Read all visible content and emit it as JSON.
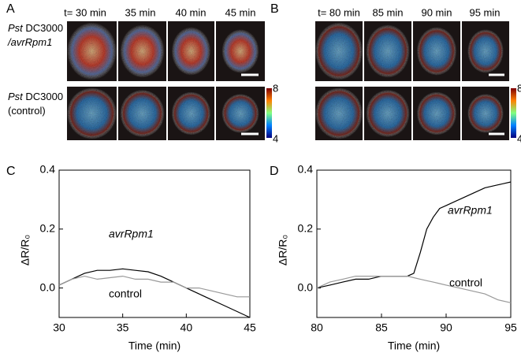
{
  "image_panels": [
    {
      "label": "A",
      "times": [
        "t= 30 min",
        "35 min",
        "40 min",
        "45 min"
      ],
      "rows": [
        [
          [
            {
              "text": "Pst",
              "italic": true
            },
            {
              "text": " DC3000"
            }
          ],
          [
            {
              "text": "/avrRpm1",
              "italic": true
            }
          ]
        ],
        [
          [
            {
              "text": "Pst",
              "italic": true
            },
            {
              "text": " DC3000"
            }
          ],
          [
            {
              "text": "(control)"
            }
          ]
        ]
      ],
      "colorbar": {
        "max": 8,
        "min": 4
      }
    },
    {
      "label": "B",
      "times": [
        "t= 80 min",
        "85 min",
        "90 min",
        "95 min"
      ],
      "rows": [],
      "colorbar": {
        "max": 8,
        "min": 4
      }
    }
  ],
  "chart_data": [
    {
      "type": "line",
      "label": "C",
      "xlabel": "Time (min)",
      "ylabel": "ΔR/R₀",
      "x": [
        30,
        31,
        32,
        33,
        34,
        35,
        36,
        37,
        38,
        39,
        40,
        41,
        42,
        43,
        44,
        45
      ],
      "xlim": [
        30,
        45
      ],
      "ylim": [
        -0.1,
        0.4
      ],
      "xticks": [
        30,
        35,
        40,
        45
      ],
      "yticks": [
        {
          "value": 0,
          "label": "0.0"
        },
        0.2,
        0.4
      ],
      "series": [
        {
          "name": "avrRpm1",
          "color": "#000000",
          "values": [
            0.01,
            0.03,
            0.05,
            0.06,
            0.06,
            0.065,
            0.06,
            0.055,
            0.04,
            0.02,
            0.0,
            -0.02,
            -0.04,
            -0.06,
            -0.08,
            -0.1
          ]
        },
        {
          "name": "control",
          "color": "#999999",
          "values": [
            0.01,
            0.03,
            0.04,
            0.03,
            0.035,
            0.04,
            0.03,
            0.03,
            0.02,
            0.02,
            0.0,
            0.0,
            -0.01,
            -0.02,
            -0.03,
            -0.03
          ]
        }
      ]
    },
    {
      "type": "line",
      "label": "D",
      "xlabel": "Time (min)",
      "ylabel": "ΔR/R₀",
      "x": [
        80,
        81,
        82,
        83,
        84,
        85,
        86,
        87,
        87.5,
        88,
        88.5,
        89,
        89.5,
        90,
        91,
        92,
        93,
        94,
        95
      ],
      "xlim": [
        80,
        95
      ],
      "ylim": [
        -0.1,
        0.4
      ],
      "xticks": [
        80,
        85,
        90,
        95
      ],
      "yticks": [
        {
          "value": 0,
          "label": "0.0"
        },
        0.2,
        0.4
      ],
      "series": [
        {
          "name": "avrRpm1",
          "color": "#000000",
          "values": [
            0.0,
            0.01,
            0.02,
            0.03,
            0.03,
            0.04,
            0.04,
            0.04,
            0.05,
            0.12,
            0.2,
            0.24,
            0.27,
            0.28,
            0.3,
            0.32,
            0.34,
            0.35,
            0.36
          ]
        },
        {
          "name": "control",
          "color": "#999999",
          "values": [
            0.0,
            0.02,
            0.03,
            0.04,
            0.04,
            0.04,
            0.04,
            0.04,
            0.035,
            0.03,
            0.025,
            0.02,
            0.015,
            0.01,
            0.0,
            -0.01,
            -0.02,
            -0.04,
            -0.05
          ]
        }
      ]
    }
  ]
}
